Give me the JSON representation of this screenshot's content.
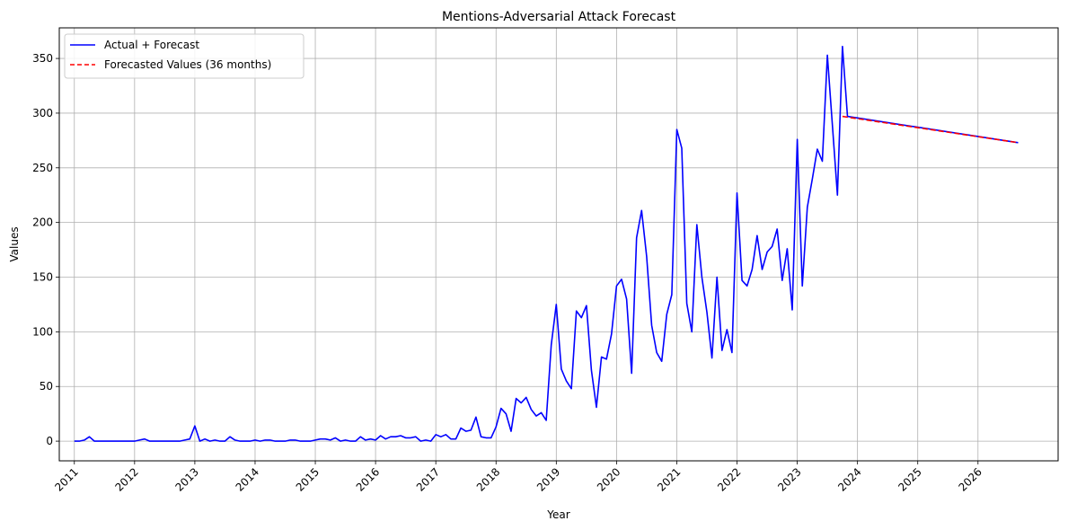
{
  "chart_data": {
    "type": "line",
    "title": "Mentions-Adversarial Attack Forecast",
    "xlabel": "Year",
    "ylabel": "Values",
    "x_ticks": [
      "2011",
      "2012",
      "2013",
      "2014",
      "2015",
      "2016",
      "2017",
      "2018",
      "2019",
      "2020",
      "2021",
      "2022",
      "2023",
      "2024",
      "2025",
      "2026"
    ],
    "y_ticks": [
      0,
      50,
      100,
      150,
      200,
      250,
      300,
      350
    ],
    "xlim": [
      2010.75,
      2027.33
    ],
    "ylim": [
      -18,
      378
    ],
    "grid": true,
    "legend_position": "top-left",
    "series": [
      {
        "name": "Actual + Forecast",
        "color": "#0000ff",
        "style": "solid",
        "x_start": "2011-01",
        "monthly_values": [
          0,
          0,
          1,
          4,
          0,
          0,
          0,
          0,
          0,
          0,
          0,
          0,
          0,
          1,
          2,
          0,
          0,
          0,
          0,
          0,
          0,
          0,
          1,
          2,
          14,
          0,
          2,
          0,
          1,
          0,
          0,
          4,
          1,
          0,
          0,
          0,
          1,
          0,
          1,
          1,
          0,
          0,
          0,
          1,
          1,
          0,
          0,
          0,
          1,
          2,
          2,
          1,
          3,
          0,
          1,
          0,
          0,
          4,
          1,
          2,
          1,
          5,
          2,
          4,
          4,
          5,
          3,
          3,
          4,
          0,
          1,
          0,
          6,
          4,
          6,
          2,
          2,
          12,
          9,
          10,
          22,
          4,
          3,
          3,
          13,
          30,
          25,
          9,
          39,
          35,
          40,
          29,
          23,
          26,
          19,
          88,
          125,
          66,
          55,
          48,
          119,
          113,
          124,
          65,
          31,
          77,
          75,
          98,
          142,
          148,
          130,
          62,
          186,
          211,
          169,
          106,
          81,
          73,
          116,
          134,
          285,
          268,
          126,
          100,
          198,
          150,
          118,
          76,
          150,
          83,
          102,
          81,
          227,
          147,
          142,
          157,
          188,
          157,
          173,
          178,
          194,
          147,
          176,
          120,
          276,
          142,
          214,
          240,
          267,
          256,
          353,
          289,
          225,
          361,
          297
        ]
      },
      {
        "name": "Forecasted Values (36 months)",
        "color": "#ff0000",
        "style": "dashed",
        "x_start": "2023-10",
        "x_end": "2026-09",
        "start_value": 297,
        "end_value": 273
      }
    ]
  }
}
